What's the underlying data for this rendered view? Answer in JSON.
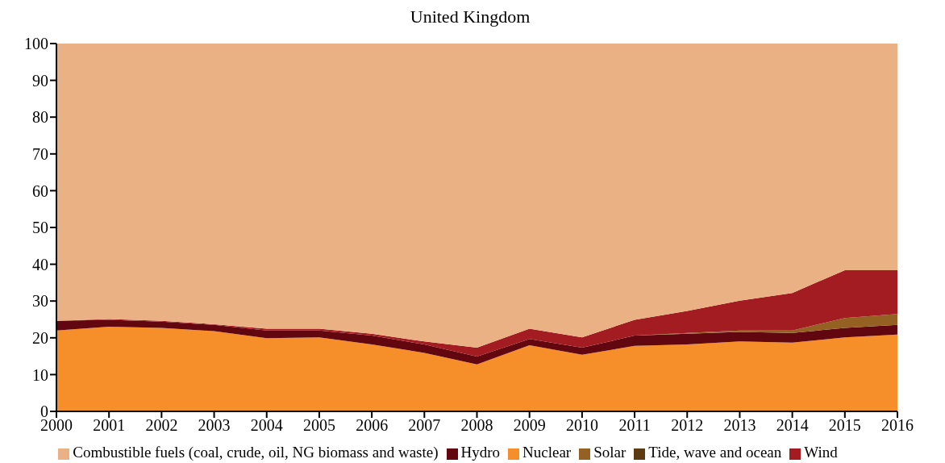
{
  "chart_data": {
    "type": "area",
    "title": "United Kingdom",
    "stacked": true,
    "x": [
      2000,
      2001,
      2002,
      2003,
      2004,
      2005,
      2006,
      2007,
      2008,
      2009,
      2010,
      2011,
      2012,
      2013,
      2014,
      2015,
      2016
    ],
    "series": [
      {
        "name": "Nuclear",
        "color": "#f68e2a",
        "values": [
          22,
          23,
          22.7,
          21.8,
          19.9,
          20.1,
          18.2,
          15.9,
          12.8,
          18,
          15.4,
          17.8,
          18.2,
          19,
          18.7,
          20.1,
          20.9
        ]
      },
      {
        "name": "Hydro",
        "color": "#620610",
        "values": [
          2.6,
          1.9,
          1.7,
          1.7,
          2.1,
          1.9,
          2.4,
          2.3,
          2.1,
          1.7,
          1.9,
          2.8,
          2.9,
          2.6,
          2.6,
          2.6,
          2.6
        ]
      },
      {
        "name": "Solar",
        "color": "#956122",
        "values": [
          0,
          0,
          0,
          0,
          0,
          0,
          0,
          0,
          0,
          0,
          0,
          0,
          0.2,
          0.4,
          0.7,
          2.7,
          3
        ]
      },
      {
        "name": "Wind",
        "color": "#a21c21",
        "values": [
          0,
          0.2,
          0.2,
          0.2,
          0.5,
          0.5,
          0.5,
          0.8,
          2.4,
          2.8,
          2.8,
          4.3,
          6,
          8.1,
          10.2,
          13,
          11.9
        ]
      },
      {
        "name": "Tide, wave and ocean",
        "color": "#5c3a12",
        "values": [
          null,
          null,
          null,
          null,
          null,
          null,
          null,
          null,
          null,
          null,
          null,
          null,
          null,
          null,
          null,
          null,
          null
        ]
      },
      {
        "name": "Combustible fuels (coal, crude, oil, NG biomass and waste)",
        "color": "#eab184",
        "values": [
          75.4,
          74.9,
          75.4,
          76.3,
          77.5,
          77.5,
          78.9,
          81,
          82.7,
          77.5,
          79.9,
          75.1,
          72.7,
          69.9,
          67.8,
          61.6,
          61.6
        ]
      }
    ],
    "xlim": [
      2000,
      2016
    ],
    "xticks": [
      2000,
      2001,
      2002,
      2003,
      2004,
      2005,
      2006,
      2007,
      2008,
      2009,
      2010,
      2011,
      2012,
      2013,
      2014,
      2015,
      2016
    ],
    "ylim": [
      0,
      100
    ],
    "yticks": [
      0,
      10,
      20,
      30,
      40,
      50,
      60,
      70,
      80,
      90,
      100
    ],
    "grid": false,
    "legend": "bottom"
  }
}
